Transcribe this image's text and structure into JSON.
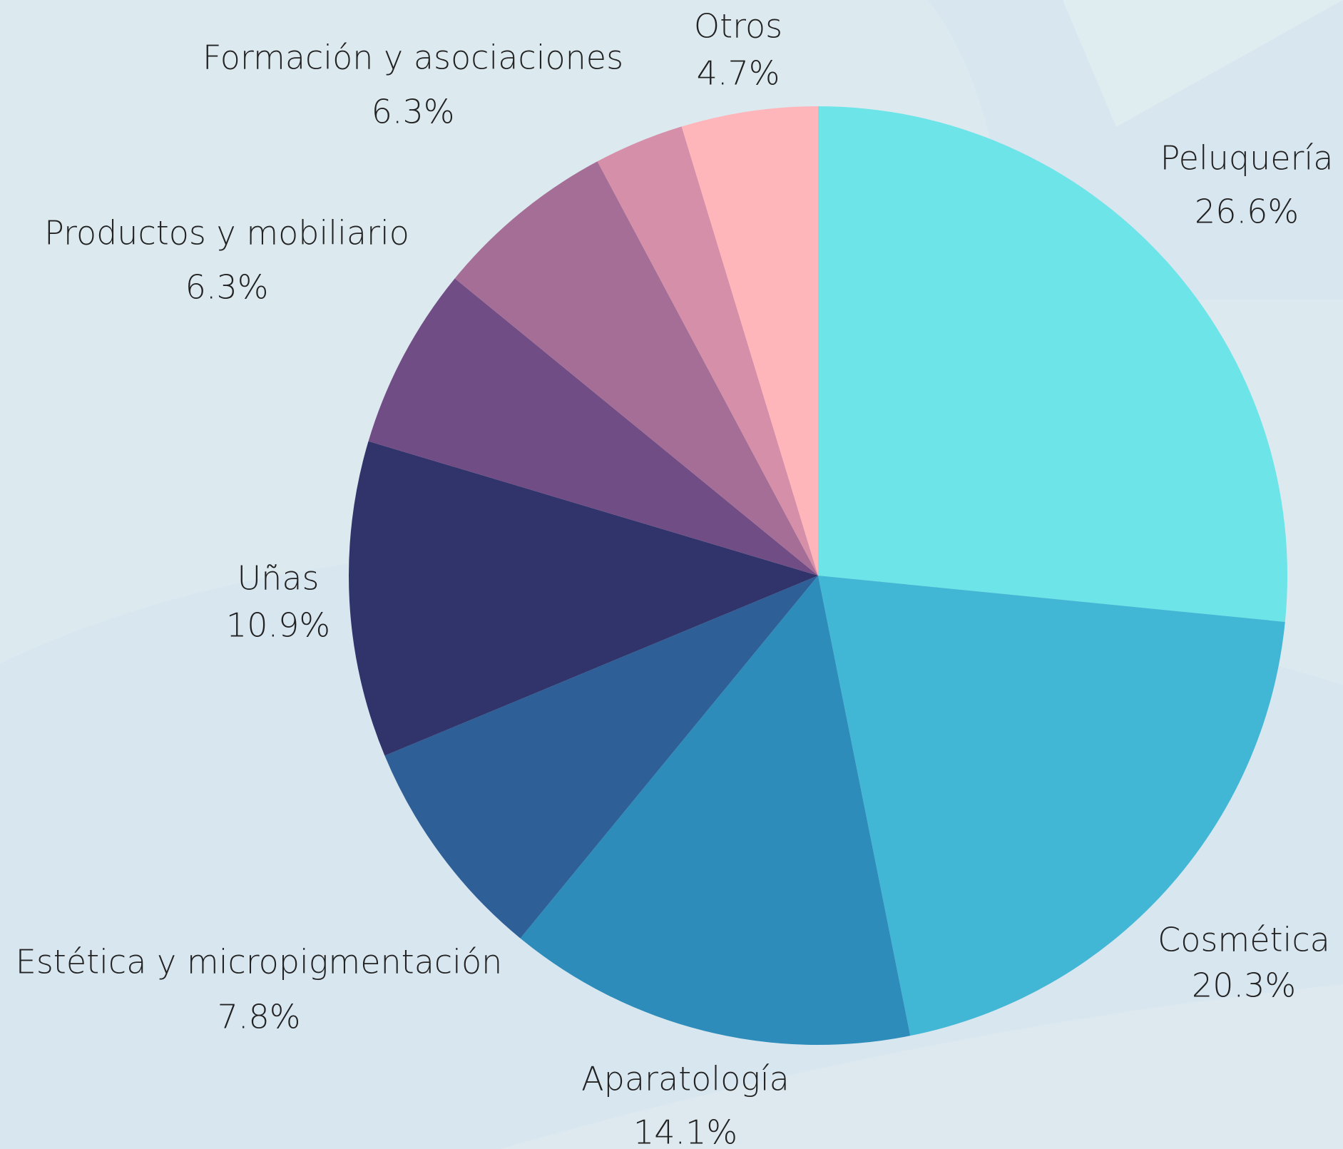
{
  "chart_data": {
    "type": "pie",
    "categories": [
      "Peluquería",
      "Cosmética",
      "Aparatología",
      "Estética y micropigmentación",
      "Uñas",
      "Productos y mobiliario",
      "Formación y asociaciones",
      null,
      "Otros"
    ],
    "values": [
      26.6,
      20.3,
      14.1,
      7.8,
      10.9,
      6.3,
      6.3,
      3.1,
      4.7
    ],
    "value_labels": [
      "26.6%",
      "20.3%",
      "14.1%",
      "7.8%",
      "10.9%",
      "6.3%",
      "6.3%",
      null,
      "4.7%"
    ],
    "colors": [
      "#6ce4e8",
      "#42b7d5",
      "#2d8cba",
      "#2e5f97",
      "#31346b",
      "#714d85",
      "#a56e96",
      "#d68fa8",
      "#ffb6bb"
    ]
  }
}
